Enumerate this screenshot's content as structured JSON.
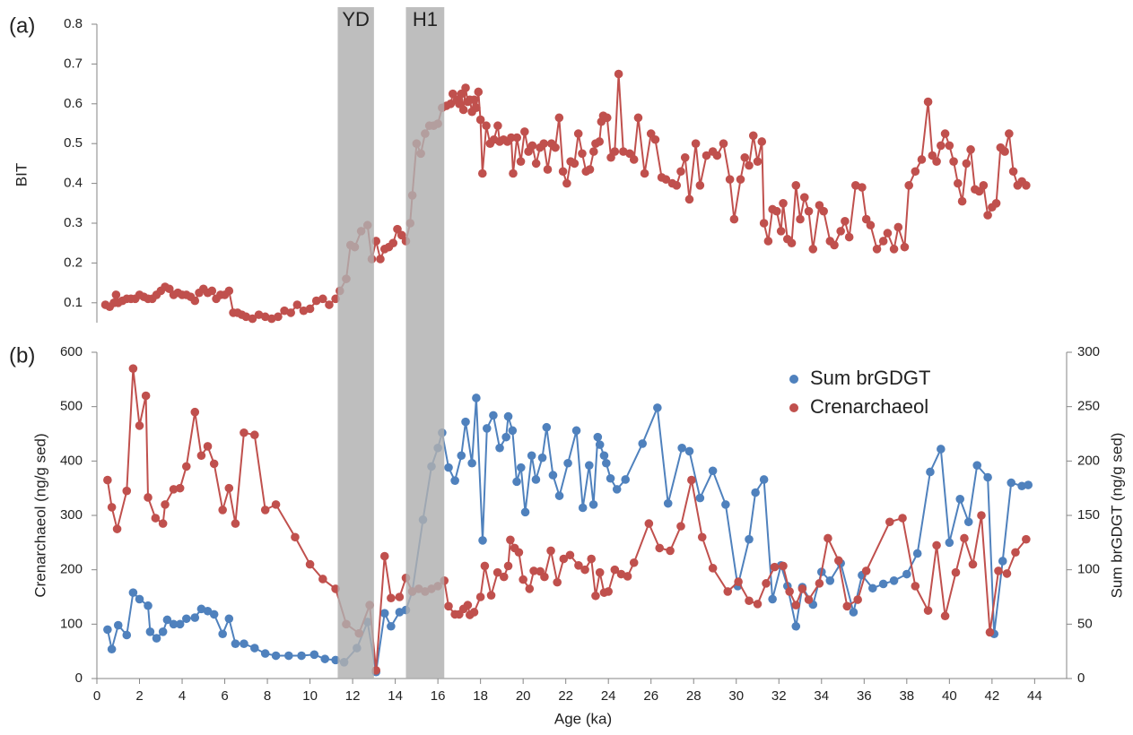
{
  "chart_data": [
    {
      "type": "line",
      "panel_label": "(a)",
      "y_label": "BIT",
      "color": "#c0504d",
      "xlim": [
        0,
        45.5
      ],
      "ylim": [
        0.05,
        0.8
      ],
      "yticks": [
        0.1,
        0.2,
        0.3,
        0.4,
        0.5,
        0.6,
        0.7,
        0.8
      ],
      "shaded_regions": [
        {
          "label": "YD",
          "x": [
            11.3,
            13.0
          ]
        },
        {
          "label": "H1",
          "x": [
            14.5,
            16.3
          ]
        }
      ],
      "x": [
        0.4,
        0.6,
        0.8,
        0.9,
        1.0,
        1.2,
        1.4,
        1.6,
        1.8,
        2.0,
        2.2,
        2.4,
        2.6,
        2.8,
        3.0,
        3.2,
        3.4,
        3.6,
        3.8,
        4.0,
        4.2,
        4.4,
        4.6,
        4.8,
        5.0,
        5.2,
        5.4,
        5.6,
        5.8,
        6.0,
        6.2,
        6.4,
        6.6,
        6.8,
        7.0,
        7.3,
        7.6,
        7.9,
        8.2,
        8.5,
        8.8,
        9.1,
        9.4,
        9.7,
        10.0,
        10.3,
        10.6,
        10.9,
        11.2,
        11.4,
        11.7,
        11.9,
        12.1,
        12.4,
        12.7,
        12.9,
        13.1,
        13.3,
        13.5,
        13.7,
        13.9,
        14.1,
        14.3,
        14.5,
        14.7,
        14.8,
        15.0,
        15.2,
        15.4,
        15.6,
        15.8,
        16.0,
        16.2,
        16.4,
        16.6,
        16.7,
        16.9,
        17.0,
        17.1,
        17.2,
        17.3,
        17.4,
        17.5,
        17.6,
        17.7,
        17.8,
        17.9,
        18.0,
        18.09,
        18.27,
        18.45,
        18.63,
        18.81,
        18.9,
        19.08,
        19.26,
        19.44,
        19.53,
        19.71,
        19.89,
        20.07,
        20.25,
        20.43,
        20.61,
        20.79,
        20.97,
        21.15,
        21.33,
        21.51,
        21.69,
        21.87,
        22.05,
        22.23,
        22.41,
        22.59,
        22.77,
        22.95,
        23.13,
        23.31,
        23.4,
        23.58,
        23.67,
        23.76,
        23.94,
        24.12,
        24.3,
        24.48,
        24.7,
        25.0,
        25.2,
        25.4,
        25.7,
        26.0,
        26.2,
        26.5,
        26.7,
        27.0,
        27.2,
        27.4,
        27.6,
        27.8,
        28.1,
        28.3,
        28.6,
        28.9,
        29.1,
        29.4,
        29.7,
        29.9,
        30.2,
        30.4,
        30.6,
        30.8,
        31.0,
        31.2,
        31.3,
        31.5,
        31.7,
        31.9,
        32.1,
        32.2,
        32.4,
        32.6,
        32.8,
        33.0,
        33.2,
        33.4,
        33.6,
        33.9,
        34.1,
        34.4,
        34.6,
        34.9,
        35.1,
        35.3,
        35.6,
        35.9,
        36.1,
        36.3,
        36.6,
        36.9,
        37.1,
        37.4,
        37.6,
        37.9,
        38.1,
        38.4,
        38.7,
        39.0,
        39.2,
        39.4,
        39.6,
        39.8,
        40.0,
        40.2,
        40.4,
        40.6,
        40.8,
        41.0,
        41.2,
        41.4,
        41.6,
        41.8,
        42.0,
        42.2,
        42.4,
        42.6,
        42.8,
        43.0,
        43.2,
        43.4,
        43.6
      ],
      "values": [
        0.095,
        0.09,
        0.1,
        0.12,
        0.1,
        0.105,
        0.11,
        0.11,
        0.11,
        0.12,
        0.115,
        0.11,
        0.11,
        0.12,
        0.13,
        0.14,
        0.135,
        0.12,
        0.125,
        0.12,
        0.12,
        0.115,
        0.105,
        0.125,
        0.135,
        0.125,
        0.13,
        0.11,
        0.12,
        0.12,
        0.13,
        0.075,
        0.075,
        0.07,
        0.065,
        0.06,
        0.07,
        0.065,
        0.06,
        0.065,
        0.08,
        0.075,
        0.095,
        0.08,
        0.085,
        0.105,
        0.11,
        0.095,
        0.11,
        0.13,
        0.16,
        0.245,
        0.24,
        0.28,
        0.295,
        0.21,
        0.255,
        0.21,
        0.235,
        0.24,
        0.25,
        0.285,
        0.27,
        0.255,
        0.3,
        0.37,
        0.5,
        0.475,
        0.525,
        0.545,
        0.545,
        0.55,
        0.59,
        0.595,
        0.6,
        0.625,
        0.61,
        0.6,
        0.625,
        0.585,
        0.64,
        0.605,
        0.61,
        0.58,
        0.61,
        0.59,
        0.63,
        0.56,
        0.425,
        0.545,
        0.5,
        0.51,
        0.545,
        0.505,
        0.51,
        0.505,
        0.515,
        0.425,
        0.515,
        0.455,
        0.53,
        0.48,
        0.495,
        0.45,
        0.49,
        0.5,
        0.435,
        0.5,
        0.49,
        0.565,
        0.43,
        0.4,
        0.455,
        0.45,
        0.525,
        0.475,
        0.43,
        0.435,
        0.48,
        0.5,
        0.505,
        0.555,
        0.57,
        0.565,
        0.465,
        0.48,
        0.675,
        0.48,
        0.475,
        0.46,
        0.565,
        0.425,
        0.525,
        0.51,
        0.415,
        0.41,
        0.4,
        0.395,
        0.43,
        0.465,
        0.36,
        0.5,
        0.395,
        0.47,
        0.48,
        0.47,
        0.5,
        0.41,
        0.31,
        0.41,
        0.465,
        0.445,
        0.52,
        0.455,
        0.505,
        0.3,
        0.255,
        0.335,
        0.33,
        0.28,
        0.35,
        0.26,
        0.25,
        0.395,
        0.31,
        0.365,
        0.33,
        0.235,
        0.345,
        0.33,
        0.255,
        0.245,
        0.28,
        0.305,
        0.265,
        0.395,
        0.39,
        0.31,
        0.295,
        0.235,
        0.255,
        0.275,
        0.235,
        0.29,
        0.24,
        0.395,
        0.43,
        0.46,
        0.605,
        0.47,
        0.455,
        0.495,
        0.525,
        0.495,
        0.455,
        0.4,
        0.355,
        0.45,
        0.485,
        0.385,
        0.38,
        0.395,
        0.32,
        0.34,
        0.35,
        0.49,
        0.48,
        0.525,
        0.43,
        0.395,
        0.405,
        0.395
      ]
    },
    {
      "type": "line",
      "panel_label": "(b)",
      "x_label": "Age (ka)",
      "y_label": "Crenarchaeol (ng/g sed)",
      "y2_label": "Sum brGDGT (ng/g sed)",
      "xlim": [
        0,
        45.5
      ],
      "xticks": [
        0,
        2,
        4,
        6,
        8,
        10,
        12,
        14,
        16,
        18,
        20,
        22,
        24,
        26,
        28,
        30,
        32,
        34,
        36,
        38,
        40,
        42,
        44
      ],
      "ylim": [
        0,
        600
      ],
      "yticks": [
        0,
        100,
        200,
        300,
        400,
        500,
        600
      ],
      "y2lim": [
        0,
        300
      ],
      "y2ticks": [
        0,
        50,
        100,
        150,
        200,
        250,
        300
      ],
      "legend": "upper right",
      "series": [
        {
          "name": "Sum brGDGT",
          "color": "#4f81bd",
          "axis": "y2",
          "x": [
            0.5,
            0.7,
            1.0,
            1.4,
            1.7,
            2.0,
            2.4,
            2.5,
            2.8,
            3.1,
            3.3,
            3.6,
            3.9,
            4.2,
            4.6,
            4.9,
            5.2,
            5.5,
            5.9,
            6.2,
            6.5,
            6.9,
            7.4,
            7.9,
            8.4,
            9.0,
            9.6,
            10.2,
            10.7,
            11.2,
            11.6,
            12.2,
            12.7,
            13.1,
            13.5,
            13.8,
            14.2,
            14.5,
            14.8,
            15.3,
            15.7,
            16.0,
            16.2,
            16.5,
            16.8,
            17.1,
            17.3,
            17.6,
            17.8,
            18.1,
            18.3,
            18.6,
            18.9,
            19.2,
            19.3,
            19.5,
            19.7,
            19.9,
            20.1,
            20.4,
            20.6,
            20.9,
            21.1,
            21.4,
            21.7,
            22.1,
            22.5,
            22.8,
            23.1,
            23.3,
            23.5,
            23.6,
            23.8,
            23.9,
            24.1,
            24.4,
            24.8,
            25.6,
            26.3,
            26.8,
            27.45,
            27.8,
            28.3,
            28.9,
            29.5,
            30.07,
            30.6,
            30.9,
            31.3,
            31.7,
            32.1,
            32.4,
            32.8,
            33.1,
            33.6,
            34.0,
            34.4,
            34.9,
            35.5,
            35.9,
            36.4,
            36.9,
            37.4,
            38.0,
            38.5,
            39.1,
            39.6,
            40.0,
            40.5,
            40.9,
            41.3,
            41.8,
            42.1,
            42.5,
            42.9,
            43.4,
            43.7
          ],
          "values": [
            45,
            27,
            49,
            40,
            79,
            73,
            67,
            43,
            37,
            43,
            54,
            50,
            50,
            55,
            56,
            64,
            62,
            59,
            41,
            55,
            32,
            32,
            28,
            23,
            21,
            21,
            21,
            22,
            18,
            17,
            15,
            28,
            52,
            6,
            60,
            48,
            61,
            63,
            80,
            146,
            195,
            212,
            226,
            194,
            182,
            205,
            236,
            198,
            258,
            127,
            230,
            242,
            212,
            222,
            241,
            228,
            181,
            194,
            153,
            205,
            183,
            203,
            231,
            187,
            168,
            198,
            228,
            157,
            196,
            160,
            222,
            215,
            205,
            198,
            184,
            174,
            183,
            216,
            249,
            161,
            212,
            209,
            166,
            191,
            160,
            85,
            128,
            171,
            183,
            73,
            104,
            85,
            48,
            84,
            68,
            98,
            90,
            106,
            61,
            95,
            83,
            87,
            90,
            96,
            115,
            190,
            211,
            125,
            165,
            144,
            196,
            185,
            41,
            108,
            180,
            177,
            178
          ]
        },
        {
          "name": "Crenarchaeol",
          "color": "#c0504d",
          "x": [
            0.5,
            0.7,
            0.95,
            1.4,
            1.7,
            2.0,
            2.3,
            2.4,
            2.75,
            3.1,
            3.2,
            3.6,
            3.9,
            4.2,
            4.6,
            4.9,
            5.2,
            5.5,
            5.9,
            6.2,
            6.5,
            6.9,
            7.4,
            7.9,
            8.4,
            9.3,
            10.0,
            10.6,
            11.2,
            11.7,
            12.3,
            12.8,
            13.1,
            13.5,
            13.8,
            14.2,
            14.5,
            14.8,
            15.1,
            15.4,
            15.7,
            16.0,
            16.3,
            16.5,
            16.8,
            17.0,
            17.2,
            17.4,
            17.5,
            17.7,
            18.0,
            18.2,
            18.5,
            18.8,
            19.1,
            19.3,
            19.4,
            19.6,
            19.8,
            20.0,
            20.3,
            20.5,
            20.8,
            21.0,
            21.3,
            21.6,
            21.9,
            22.2,
            22.6,
            22.9,
            23.2,
            23.4,
            23.6,
            23.8,
            24.0,
            24.3,
            24.6,
            24.9,
            25.2,
            25.9,
            26.4,
            26.9,
            27.4,
            27.9,
            28.4,
            28.9,
            29.6,
            30.1,
            30.6,
            31.0,
            31.4,
            31.8,
            32.2,
            32.5,
            32.8,
            33.1,
            33.4,
            33.9,
            34.3,
            34.8,
            35.2,
            35.7,
            36.1,
            37.2,
            37.8,
            38.4,
            39.0,
            39.4,
            39.8,
            40.3,
            40.7,
            41.1,
            41.5,
            41.9,
            42.3,
            42.7,
            43.1,
            43.6
          ],
          "values": [
            365,
            315,
            275,
            345,
            570,
            465,
            520,
            333,
            295,
            285,
            320,
            348,
            350,
            390,
            490,
            410,
            427,
            395,
            310,
            350,
            285,
            452,
            448,
            310,
            320,
            260,
            210,
            183,
            165,
            100,
            83,
            135,
            15,
            225,
            148,
            150,
            185,
            160,
            165,
            160,
            165,
            170,
            180,
            133,
            118,
            118,
            128,
            135,
            117,
            122,
            150,
            207,
            153,
            195,
            187,
            207,
            255,
            240,
            232,
            182,
            165,
            198,
            197,
            187,
            235,
            177,
            220,
            227,
            208,
            200,
            220,
            152,
            195,
            158,
            160,
            200,
            192,
            188,
            213,
            285,
            240,
            235,
            280,
            365,
            260,
            203,
            160,
            178,
            143,
            137,
            175,
            205,
            207,
            160,
            135,
            165,
            145,
            175,
            258,
            217,
            133,
            145,
            198,
            288,
            295,
            170,
            125,
            245,
            115,
            195,
            258,
            210,
            300,
            85,
            198,
            193,
            232,
            256
          ]
        }
      ]
    }
  ]
}
